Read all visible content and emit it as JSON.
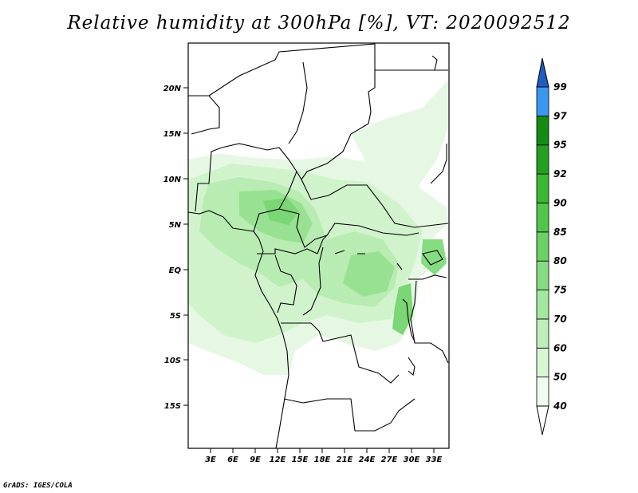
{
  "title": "Relative humidity at 300hPa [%], VT: 2020092512",
  "credit": "GrADS: IGES/COLA",
  "map": {
    "lat_labels": [
      "20N",
      "15N",
      "10N",
      "5N",
      "EQ",
      "5S",
      "10S",
      "15S"
    ],
    "lon_labels": [
      "3E",
      "6E",
      "9E",
      "12E",
      "15E",
      "18E",
      "21E",
      "24E",
      "27E",
      "30E",
      "33E"
    ],
    "lon_range": [
      0,
      35
    ],
    "lat_range": [
      -20,
      25
    ]
  },
  "colorbar": {
    "levels": [
      "40",
      "50",
      "60",
      "70",
      "75",
      "80",
      "85",
      "90",
      "92",
      "95",
      "97",
      "99"
    ],
    "colors": [
      "#f0fcef",
      "#d8f6d4",
      "#c0eebb",
      "#a4e69e",
      "#86dc80",
      "#6cd164",
      "#50c74a",
      "#3ab832",
      "#22a020",
      "#148c14",
      "#3a98ee",
      "#2a76dc",
      "#1e5cc4"
    ]
  }
}
